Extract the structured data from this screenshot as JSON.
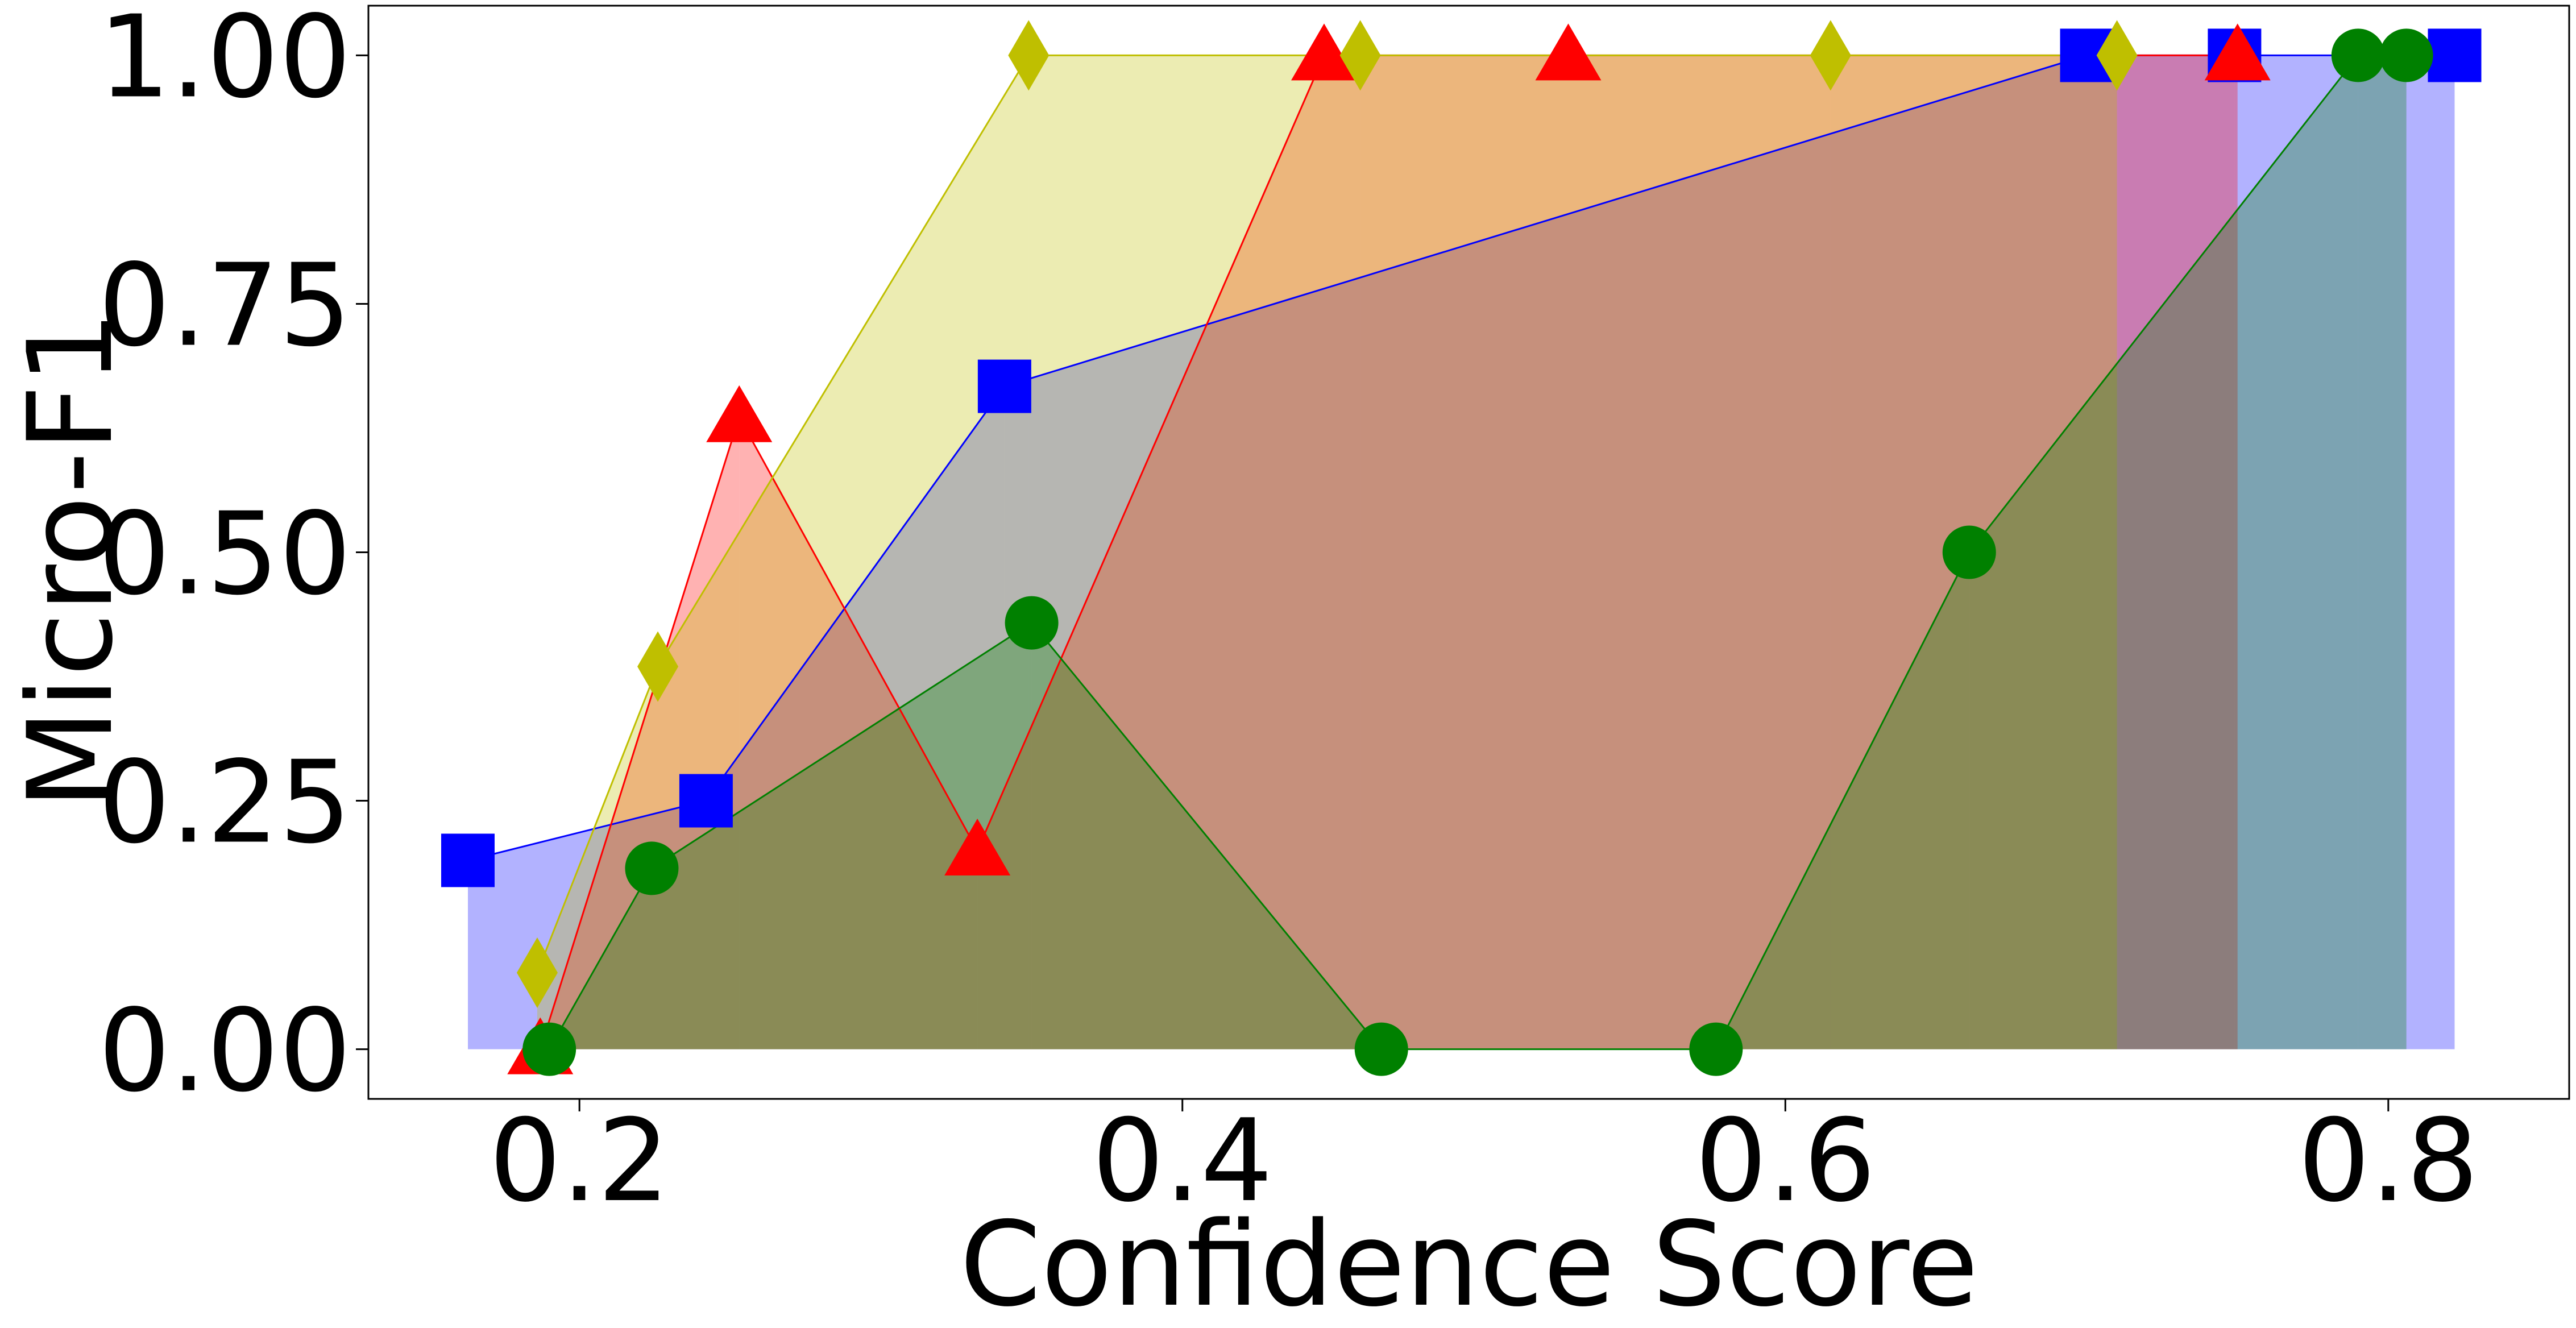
{
  "chart_data": {
    "type": "line",
    "xlabel": "Confidence Score",
    "ylabel": "Micro-F1",
    "xlim": [
      0.13,
      0.86
    ],
    "ylim": [
      -0.05,
      1.05
    ],
    "x_ticks": [
      0.2,
      0.4,
      0.6,
      0.8
    ],
    "x_tick_labels": [
      "0.2",
      "0.4",
      "0.6",
      "0.8"
    ],
    "y_ticks": [
      0.0,
      0.25,
      0.5,
      0.75,
      1.0
    ],
    "y_tick_labels": [
      "0.00",
      "0.25",
      "0.50",
      "0.75",
      "1.00"
    ],
    "grid": false,
    "legend": "none",
    "series": [
      {
        "color": "#0000ff",
        "marker": "square",
        "fill_opacity": 0.3,
        "points": [
          {
            "x": 0.163,
            "y": 0.19
          },
          {
            "x": 0.242,
            "y": 0.25
          },
          {
            "x": 0.341,
            "y": 0.667
          },
          {
            "x": 0.7,
            "y": 1.0
          },
          {
            "x": 0.749,
            "y": 1.0
          },
          {
            "x": 0.822,
            "y": 1.0
          }
        ]
      },
      {
        "color": "#ff0000",
        "marker": "triangle",
        "fill_opacity": 0.3,
        "points": [
          {
            "x": 0.187,
            "y": 0.0
          },
          {
            "x": 0.253,
            "y": 0.636
          },
          {
            "x": 0.332,
            "y": 0.2
          },
          {
            "x": 0.447,
            "y": 1.0
          },
          {
            "x": 0.528,
            "y": 1.0
          },
          {
            "x": 0.75,
            "y": 1.0
          }
        ]
      },
      {
        "color": "#bfbf00",
        "marker": "diamond",
        "fill_opacity": 0.3,
        "points": [
          {
            "x": 0.186,
            "y": 0.077
          },
          {
            "x": 0.226,
            "y": 0.385
          },
          {
            "x": 0.349,
            "y": 1.0
          },
          {
            "x": 0.459,
            "y": 1.0
          },
          {
            "x": 0.615,
            "y": 1.0
          },
          {
            "x": 0.71,
            "y": 1.0
          }
        ]
      },
      {
        "color": "#008000",
        "marker": "circle",
        "fill_opacity": 0.3,
        "points": [
          {
            "x": 0.19,
            "y": 0.0
          },
          {
            "x": 0.224,
            "y": 0.182
          },
          {
            "x": 0.35,
            "y": 0.429
          },
          {
            "x": 0.466,
            "y": 0.0
          },
          {
            "x": 0.577,
            "y": 0.0
          },
          {
            "x": 0.661,
            "y": 0.5
          },
          {
            "x": 0.79,
            "y": 1.0
          },
          {
            "x": 0.806,
            "y": 1.0
          }
        ]
      }
    ]
  }
}
